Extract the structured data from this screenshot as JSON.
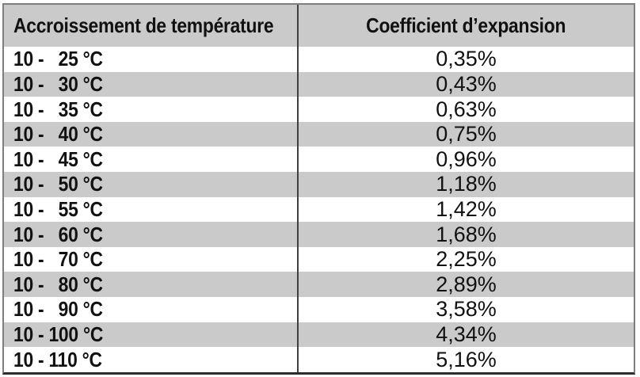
{
  "colors": {
    "header_bg": "#cacaca",
    "shaded_row_bg": "#cacaca",
    "row_bg": "#ffffff",
    "outer_border": "#7e7e7e",
    "bottom_border": "#2c2c2c",
    "column_divider": "#3f3f3f",
    "text": "#111111"
  },
  "table": {
    "headers": [
      "Accroissement de température",
      "Coefficient d’expansion"
    ],
    "rows": [
      {
        "range": "10 -   25 °C",
        "coefficient": "0,35%",
        "shaded": false
      },
      {
        "range": "10 -   30 °C",
        "coefficient": "0,43%",
        "shaded": true
      },
      {
        "range": "10 -   35 °C",
        "coefficient": "0,63%",
        "shaded": false
      },
      {
        "range": "10 -   40 °C",
        "coefficient": "0,75%",
        "shaded": true
      },
      {
        "range": "10 -   45 °C",
        "coefficient": "0,96%",
        "shaded": false
      },
      {
        "range": "10 -   50 °C",
        "coefficient": "1,18%",
        "shaded": true
      },
      {
        "range": "10 -   55 °C",
        "coefficient": "1,42%",
        "shaded": false
      },
      {
        "range": "10 -   60 °C",
        "coefficient": "1,68%",
        "shaded": true
      },
      {
        "range": "10 -   70 °C",
        "coefficient": "2,25%",
        "shaded": false
      },
      {
        "range": "10 -   80 °C",
        "coefficient": "2,89%",
        "shaded": true
      },
      {
        "range": "10 -   90 °C",
        "coefficient": "3,58%",
        "shaded": false
      },
      {
        "range": "10 - 100 °C",
        "coefficient": "4,34%",
        "shaded": true
      },
      {
        "range": "10 - 110 °C",
        "coefficient": "5,16%",
        "shaded": false
      }
    ]
  }
}
